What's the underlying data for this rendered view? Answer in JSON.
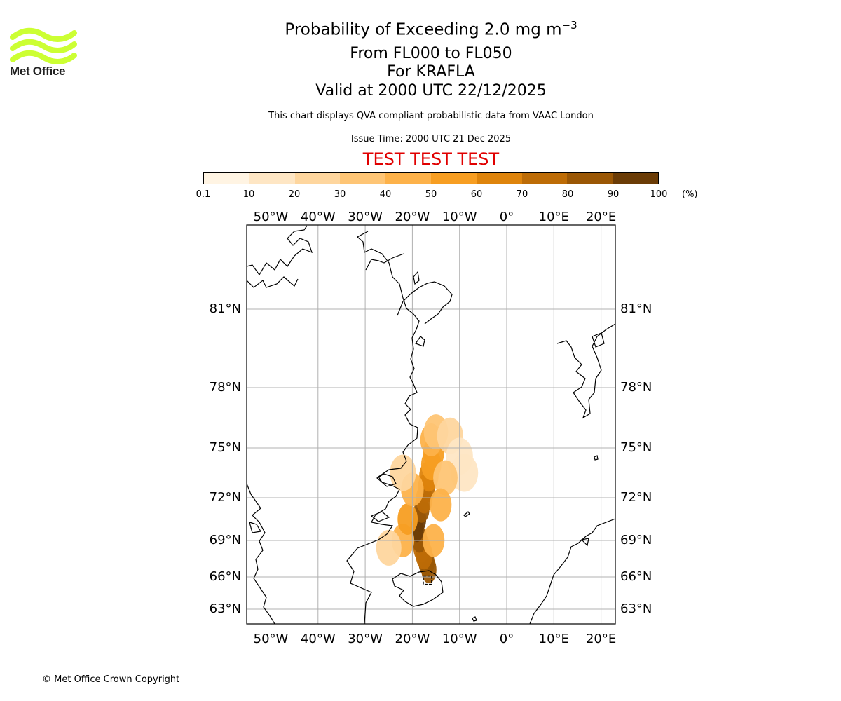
{
  "logo": {
    "text": "Met Office",
    "color": "#ccff33"
  },
  "title": {
    "main_prefix": "Probability of Exceeding 2.0 mg m",
    "main_exponent": "−3",
    "flight_levels": "From FL000 to FL050",
    "volcano": "For KRAFLA",
    "valid": "Valid at 2000 UTC 22/12/2025"
  },
  "subtitle": "This chart displays QVA compliant probabilistic data from VAAC London",
  "issue_time": "Issue Time: 2000 UTC 21 Dec 2025",
  "test_banner": "TEST TEST TEST",
  "colorbar": {
    "ticks": [
      "0.1",
      "10",
      "20",
      "30",
      "40",
      "50",
      "60",
      "70",
      "80",
      "90",
      "100"
    ],
    "unit": "(%)",
    "colors": [
      "#fff4e3",
      "#fee6c4",
      "#fed69e",
      "#fec575",
      "#fdb24a",
      "#f79e22",
      "#de840c",
      "#bd6c06",
      "#9a5705",
      "#6b3c06"
    ]
  },
  "map": {
    "lon_labels": [
      "50°W",
      "40°W",
      "30°W",
      "20°W",
      "10°W",
      "0°",
      "10°E",
      "20°E"
    ],
    "lat_labels": [
      "81°N",
      "78°N",
      "75°N",
      "72°N",
      "69°N",
      "66°N",
      "63°N"
    ],
    "plume": {
      "source_lon": -16.8,
      "source_lat": 65.7,
      "cells": [
        {
          "lon": -16.5,
          "lat": 66.6,
          "p": 85
        },
        {
          "lon": -17,
          "lat": 67.2,
          "p": 80
        },
        {
          "lon": -17.5,
          "lat": 67.8,
          "p": 75
        },
        {
          "lon": -18,
          "lat": 68.4,
          "p": 75
        },
        {
          "lon": -18.5,
          "lat": 69.1,
          "p": 85
        },
        {
          "lon": -19,
          "lat": 69.8,
          "p": 95
        },
        {
          "lon": -18.5,
          "lat": 70.5,
          "p": 95
        },
        {
          "lon": -18,
          "lat": 71.2,
          "p": 85
        },
        {
          "lon": -17.5,
          "lat": 71.9,
          "p": 75
        },
        {
          "lon": -17,
          "lat": 72.6,
          "p": 70
        },
        {
          "lon": -16.5,
          "lat": 73.3,
          "p": 60
        },
        {
          "lon": -16,
          "lat": 74,
          "p": 55
        },
        {
          "lon": -15.5,
          "lat": 74.7,
          "p": 50
        },
        {
          "lon": -16,
          "lat": 75.4,
          "p": 45
        },
        {
          "lon": -15,
          "lat": 75.8,
          "p": 30
        },
        {
          "lon": -12,
          "lat": 75.6,
          "p": 20
        },
        {
          "lon": -10,
          "lat": 74.5,
          "p": 15
        },
        {
          "lon": -9,
          "lat": 73.5,
          "p": 10
        },
        {
          "lon": -13,
          "lat": 73.2,
          "p": 30
        },
        {
          "lon": -14,
          "lat": 71.5,
          "p": 45
        },
        {
          "lon": -22,
          "lat": 69,
          "p": 40
        },
        {
          "lon": -25,
          "lat": 68.4,
          "p": 25
        },
        {
          "lon": -21,
          "lat": 70.5,
          "p": 55
        },
        {
          "lon": -20,
          "lat": 72.5,
          "p": 40
        },
        {
          "lon": -22,
          "lat": 73.5,
          "p": 20
        },
        {
          "lon": -15.5,
          "lat": 69,
          "p": 45
        }
      ]
    }
  },
  "copyright": "© Met Office Crown Copyright"
}
